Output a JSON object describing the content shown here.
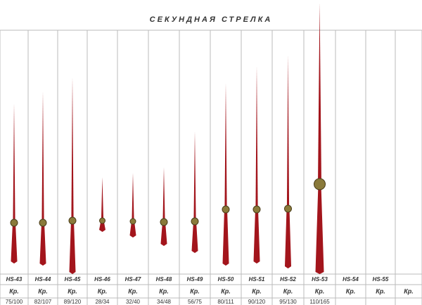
{
  "title": "СЕКУНДНАЯ СТРЕЛКА",
  "columns": [
    {
      "code": "HS-43",
      "material": "Кр.",
      "size": "75/100"
    },
    {
      "code": "HS-44",
      "material": "Кр.",
      "size": "82/107"
    },
    {
      "code": "HS-45",
      "material": "Кр.",
      "size": "89/120"
    },
    {
      "code": "HS-46",
      "material": "Кр.",
      "size": "28/34"
    },
    {
      "code": "HS-47",
      "material": "Кр.",
      "size": "32/40"
    },
    {
      "code": "HS-48",
      "material": "Кр.",
      "size": "34/48"
    },
    {
      "code": "HS-49",
      "material": "Кр.",
      "size": "56/75"
    },
    {
      "code": "HS-50",
      "material": "Кр.",
      "size": "80/111"
    },
    {
      "code": "HS-51",
      "material": "Кр.",
      "size": "90/120"
    },
    {
      "code": "HS-52",
      "material": "Кр.",
      "size": "95/130"
    },
    {
      "code": "HS-53",
      "material": "Кр.",
      "size": "110/165"
    },
    {
      "code": "HS-54",
      "material": "Кр."
    },
    {
      "code": "HS-55",
      "material": "Кр."
    },
    {
      "material": "Кр."
    }
  ]
}
